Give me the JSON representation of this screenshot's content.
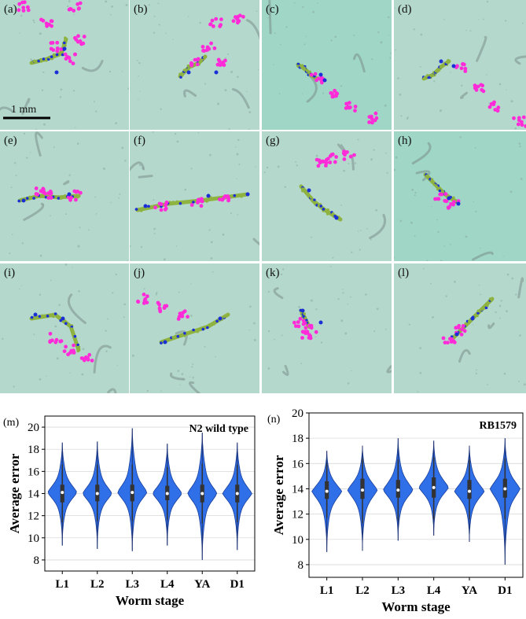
{
  "panels": [
    {
      "label": "(a)",
      "scale_bar": "1 mm"
    },
    {
      "label": "(b)"
    },
    {
      "label": "(c)"
    },
    {
      "label": "(d)"
    },
    {
      "label": "(e)"
    },
    {
      "label": "(f)"
    },
    {
      "label": "(g)"
    },
    {
      "label": "(h)"
    },
    {
      "label": "(i)"
    },
    {
      "label": "(j)"
    },
    {
      "label": "(k)"
    },
    {
      "label": "(l)"
    }
  ],
  "colors": {
    "background": "#b4d8cc",
    "background_alt": "#9fd6c6",
    "worm_shadow": "#7c8f8a",
    "track_worm": "#8fb341",
    "track_blue": "#1a2fd6",
    "track_magenta": "#ff2ad8",
    "violin_fill": "#2f6fe8",
    "violin_edge": "#1b3f9a",
    "box": "#333333",
    "median": "#ffffff"
  },
  "chart_data": [
    {
      "type": "violin",
      "panel_label": "(m)",
      "title": "N2 wild type",
      "xlabel": "Worm stage",
      "ylabel": "Average error",
      "categories": [
        "L1",
        "L2",
        "L3",
        "L4",
        "YA",
        "D1"
      ],
      "ylim": [
        7,
        21
      ],
      "yticks": [
        8,
        10,
        12,
        14,
        16,
        18,
        20
      ],
      "grid": true,
      "violins": [
        {
          "min": 9.3,
          "max": 18.6,
          "q1": 13.2,
          "median": 14.1,
          "q3": 14.8,
          "wmin": 11.4,
          "wmax": 16.6
        },
        {
          "min": 9.0,
          "max": 18.7,
          "q1": 13.3,
          "median": 14.0,
          "q3": 14.8,
          "wmin": 11.5,
          "wmax": 16.6
        },
        {
          "min": 8.8,
          "max": 19.9,
          "q1": 13.3,
          "median": 14.1,
          "q3": 14.8,
          "wmin": 11.5,
          "wmax": 16.6
        },
        {
          "min": 9.3,
          "max": 18.5,
          "q1": 13.4,
          "median": 14.0,
          "q3": 14.7,
          "wmin": 11.6,
          "wmax": 16.4
        },
        {
          "min": 8.0,
          "max": 19.5,
          "q1": 13.2,
          "median": 14.0,
          "q3": 14.8,
          "wmin": 11.3,
          "wmax": 16.7
        },
        {
          "min": 8.9,
          "max": 18.6,
          "q1": 13.2,
          "median": 14.0,
          "q3": 14.8,
          "wmin": 11.4,
          "wmax": 16.6
        }
      ]
    },
    {
      "type": "violin",
      "panel_label": "(n)",
      "title": "RB1579",
      "xlabel": "Worm stage",
      "ylabel": "Average error",
      "categories": [
        "L1",
        "L2",
        "L3",
        "L4",
        "YA",
        "D1"
      ],
      "ylim": [
        7,
        20
      ],
      "yticks": [
        8,
        10,
        12,
        14,
        16,
        18,
        20
      ],
      "grid": true,
      "violins": [
        {
          "min": 9.0,
          "max": 17.0,
          "q1": 13.2,
          "median": 13.8,
          "q3": 14.6,
          "wmin": 11.7,
          "wmax": 16.0
        },
        {
          "min": 9.1,
          "max": 17.4,
          "q1": 13.2,
          "median": 13.9,
          "q3": 14.8,
          "wmin": 11.3,
          "wmax": 16.4
        },
        {
          "min": 9.9,
          "max": 18.0,
          "q1": 13.3,
          "median": 13.9,
          "q3": 14.7,
          "wmin": 11.5,
          "wmax": 16.3
        },
        {
          "min": 10.3,
          "max": 17.8,
          "q1": 13.3,
          "median": 14.1,
          "q3": 14.9,
          "wmin": 11.6,
          "wmax": 16.5
        },
        {
          "min": 9.8,
          "max": 17.4,
          "q1": 13.2,
          "median": 13.8,
          "q3": 14.7,
          "wmin": 11.6,
          "wmax": 16.3
        },
        {
          "min": 8.0,
          "max": 18.0,
          "q1": 13.3,
          "median": 14.0,
          "q3": 14.8,
          "wmin": 11.6,
          "wmax": 16.4
        }
      ]
    }
  ]
}
